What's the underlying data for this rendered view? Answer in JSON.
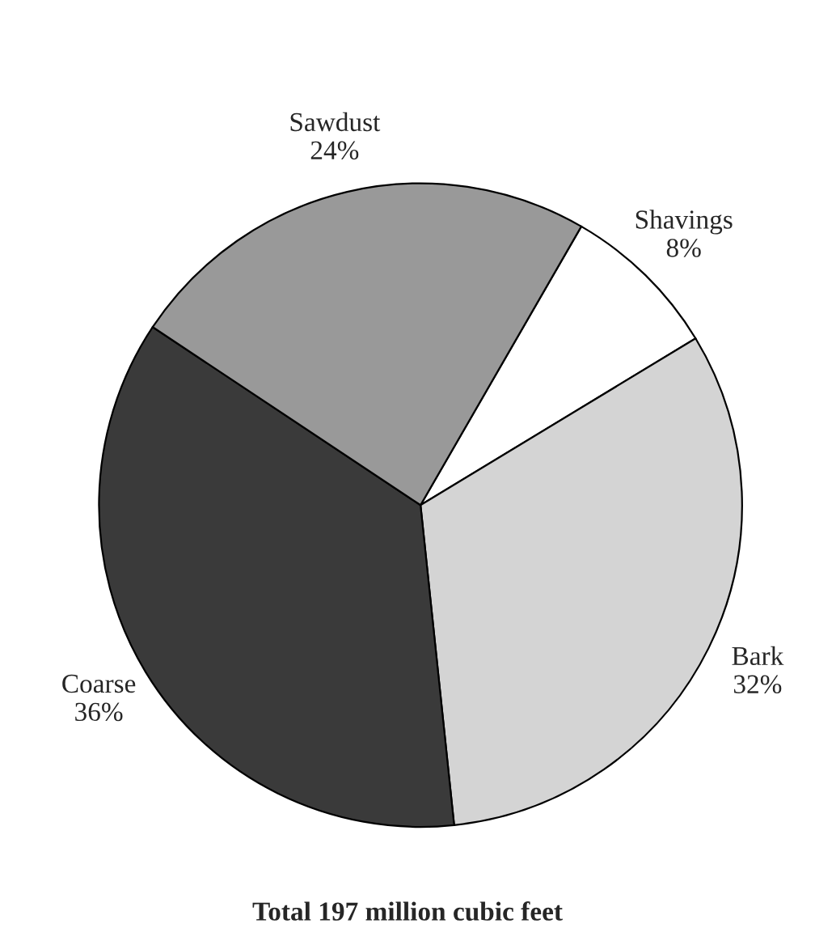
{
  "chart_data": {
    "type": "pie",
    "categories": [
      "Shavings",
      "Bark",
      "Coarse",
      "Sawdust"
    ],
    "values": [
      8,
      32,
      36,
      24
    ],
    "value_labels": [
      "8%",
      "32%",
      "36%",
      "24%"
    ],
    "colors": [
      "#ffffff",
      "#d4d4d4",
      "#3a3a3a",
      "#999999"
    ],
    "annotations": [
      "Total 197 million cubic feet"
    ]
  }
}
